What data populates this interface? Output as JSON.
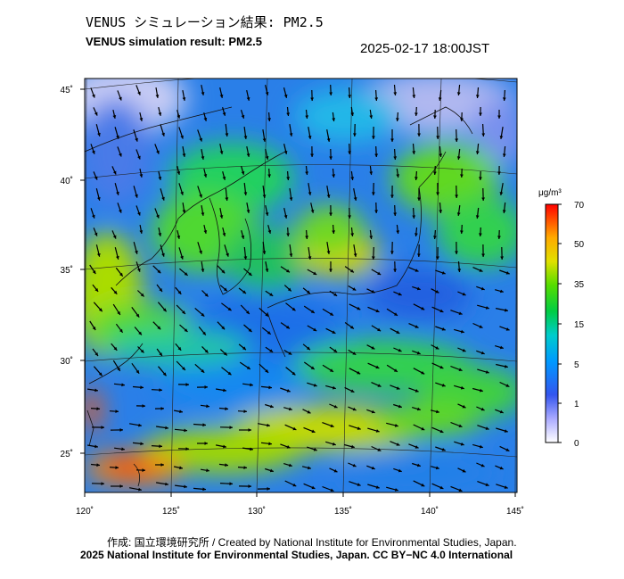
{
  "title_jp": "VENUS シミュレーション結果: PM2.5",
  "title_en": "VENUS simulation result: PM2.5",
  "timestamp": "2025-02-17 18:00JST",
  "map": {
    "lon_range": [
      120,
      145
    ],
    "lat_range": [
      23,
      46
    ],
    "lon_ticks": [
      "120˚",
      "125˚",
      "130˚",
      "135˚",
      "140˚",
      "145˚"
    ],
    "lat_ticks": [
      "45˚",
      "40˚",
      "35˚",
      "30˚",
      "25˚"
    ],
    "field": "PM2.5 concentration with wind vectors"
  },
  "colorbar": {
    "unit": "μg/m³",
    "ticks": [
      "70",
      "50",
      "35",
      "15",
      "5",
      "1",
      "0"
    ],
    "colors": [
      "#ff0000",
      "#ff8800",
      "#ffcc00",
      "#f0e000",
      "#66dd00",
      "#00cc44",
      "#00cccc",
      "#0088ff",
      "#0044ee",
      "#6677ee",
      "#9999ff",
      "#ffffff"
    ]
  },
  "credit": "作成: 国立環境研究所 / Created by National Institute for Environmental Studies, Japan.",
  "license": "2025 National Institute for Environmental Studies, Japan. CC BY−NC 4.0 International"
}
